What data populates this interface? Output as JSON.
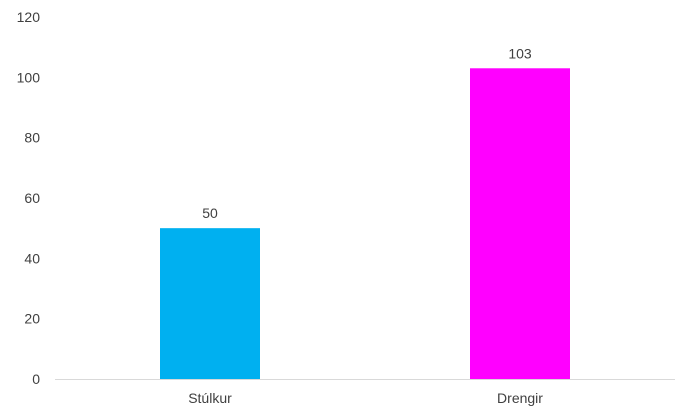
{
  "chart_data": {
    "type": "bar",
    "categories": [
      "Stúlkur",
      "Drengir"
    ],
    "values": [
      50,
      103
    ],
    "data_labels": [
      "50",
      "103"
    ],
    "colors": [
      "#00B0F0",
      "#FF00FF"
    ],
    "title": "",
    "xlabel": "",
    "ylabel": "",
    "ylim": [
      0,
      120
    ],
    "yticks": [
      0,
      20,
      40,
      60,
      80,
      100,
      120
    ],
    "ytick_labels": [
      "0",
      "20",
      "40",
      "60",
      "80",
      "100",
      "120"
    ],
    "grid": false,
    "legend": "none",
    "axis_color": "#D9D9D9"
  }
}
